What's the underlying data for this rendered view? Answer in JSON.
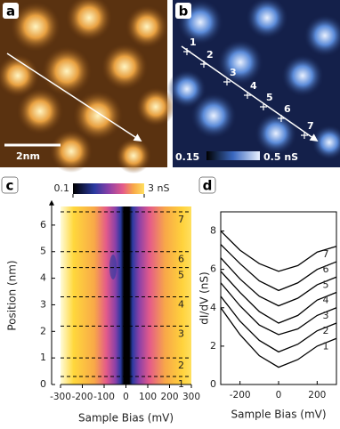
{
  "images": [
    {
      "panel_label": "a",
      "scale_bar": "2nm"
    },
    {
      "panel_label": "b",
      "points": [
        "1",
        "2",
        "3",
        "4",
        "5",
        "6",
        "7"
      ],
      "colorbar": [
        "0.15",
        "0.5 nS"
      ]
    }
  ],
  "chart_data": [
    {
      "type": "heatmap",
      "panel_label": "c",
      "x_label": "Sample Bias (mV)",
      "y_label": "Position (nm)",
      "xlim": [
        -300,
        300
      ],
      "xticks": [
        -300,
        -200,
        -100,
        0,
        100,
        200,
        300
      ],
      "ylim": [
        0,
        6.7
      ],
      "yticks": [
        0,
        1,
        2,
        3,
        4,
        5,
        6
      ],
      "colorbar": {
        "clim": [
          0.1,
          3
        ],
        "cticks": [
          0.1,
          {
            "value": 3,
            "label": "3 nS"
          }
        ]
      },
      "lines": {
        "positions": [
          0.3,
          1.0,
          2.2,
          3.3,
          4.4,
          5.0,
          6.5
        ],
        "labels": [
          "1",
          "2",
          "3",
          "4",
          "5",
          "6",
          "7"
        ]
      }
    },
    {
      "type": "line",
      "panel_label": "d",
      "x_label": "Sample Bias (mV)",
      "y_label": "dI/dV (nS)",
      "xlim": [
        -300,
        300
      ],
      "xticks": [
        -200,
        0,
        200
      ],
      "ylim": [
        0,
        9
      ],
      "yticks": [
        0,
        2,
        4,
        6,
        8
      ],
      "x": [
        -300,
        -200,
        -100,
        0,
        100,
        200,
        300
      ],
      "series": [
        {
          "name": "1",
          "color": "#000000",
          "values": [
            4.0,
            2.6,
            1.5,
            0.9,
            1.3,
            2.0,
            2.4
          ]
        },
        {
          "name": "2",
          "color": "#000000",
          "values": [
            4.6,
            3.3,
            2.3,
            1.7,
            2.1,
            2.8,
            3.2
          ]
        },
        {
          "name": "3",
          "color": "#000000",
          "values": [
            5.3,
            4.1,
            3.1,
            2.6,
            2.9,
            3.6,
            4.0
          ]
        },
        {
          "name": "4",
          "color": "#000000",
          "values": [
            5.9,
            4.8,
            3.8,
            3.2,
            3.6,
            4.4,
            4.8
          ]
        },
        {
          "name": "5",
          "color": "#000000",
          "values": [
            6.6,
            5.5,
            4.6,
            4.1,
            4.5,
            5.2,
            5.6
          ]
        },
        {
          "name": "6",
          "color": "#000000",
          "values": [
            7.3,
            6.3,
            5.4,
            4.9,
            5.3,
            6.0,
            6.4
          ]
        },
        {
          "name": "7",
          "color": "#000000",
          "values": [
            8.0,
            7.0,
            6.3,
            5.9,
            6.2,
            6.9,
            7.2
          ]
        }
      ]
    }
  ]
}
